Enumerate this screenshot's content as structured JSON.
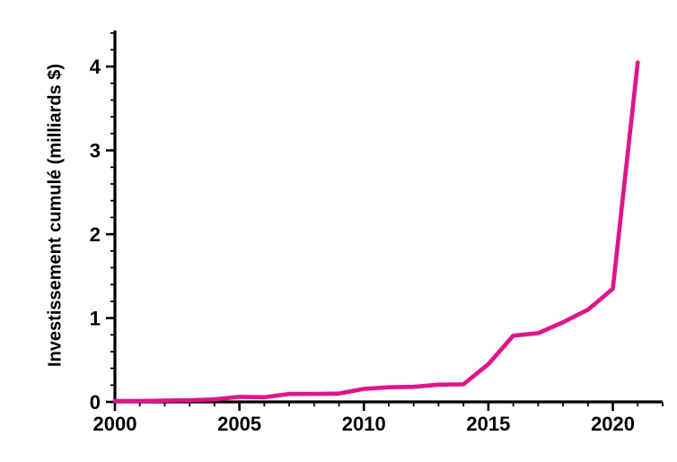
{
  "page": {
    "background": "#ffffff"
  },
  "chart_data": {
    "type": "line",
    "title": "",
    "xlabel": "",
    "ylabel": "Investissement cumulé (milliards $)",
    "series_name": "Investissement cumulé",
    "x": [
      2000,
      2001,
      2002,
      2003,
      2004,
      2005,
      2006,
      2007,
      2008,
      2009,
      2010,
      2011,
      2012,
      2013,
      2014,
      2015,
      2016,
      2017,
      2018,
      2019,
      2020,
      2021
    ],
    "values": [
      0.01,
      0.01,
      0.015,
      0.02,
      0.03,
      0.06,
      0.055,
      0.095,
      0.095,
      0.1,
      0.155,
      0.175,
      0.18,
      0.205,
      0.21,
      0.45,
      0.79,
      0.82,
      0.95,
      1.1,
      1.35,
      4.05
    ],
    "xlim": [
      2000,
      2022
    ],
    "ylim": [
      0,
      4.43
    ],
    "xticks": [
      2000,
      2005,
      2010,
      2015,
      2020
    ],
    "yticks": [
      0,
      1,
      2,
      3,
      4
    ],
    "x_minor_step": 1,
    "y_minor_step": 0.2,
    "line_color": "#ec0c8c",
    "axis_color": "#000000",
    "grid": false,
    "legend": "none"
  }
}
